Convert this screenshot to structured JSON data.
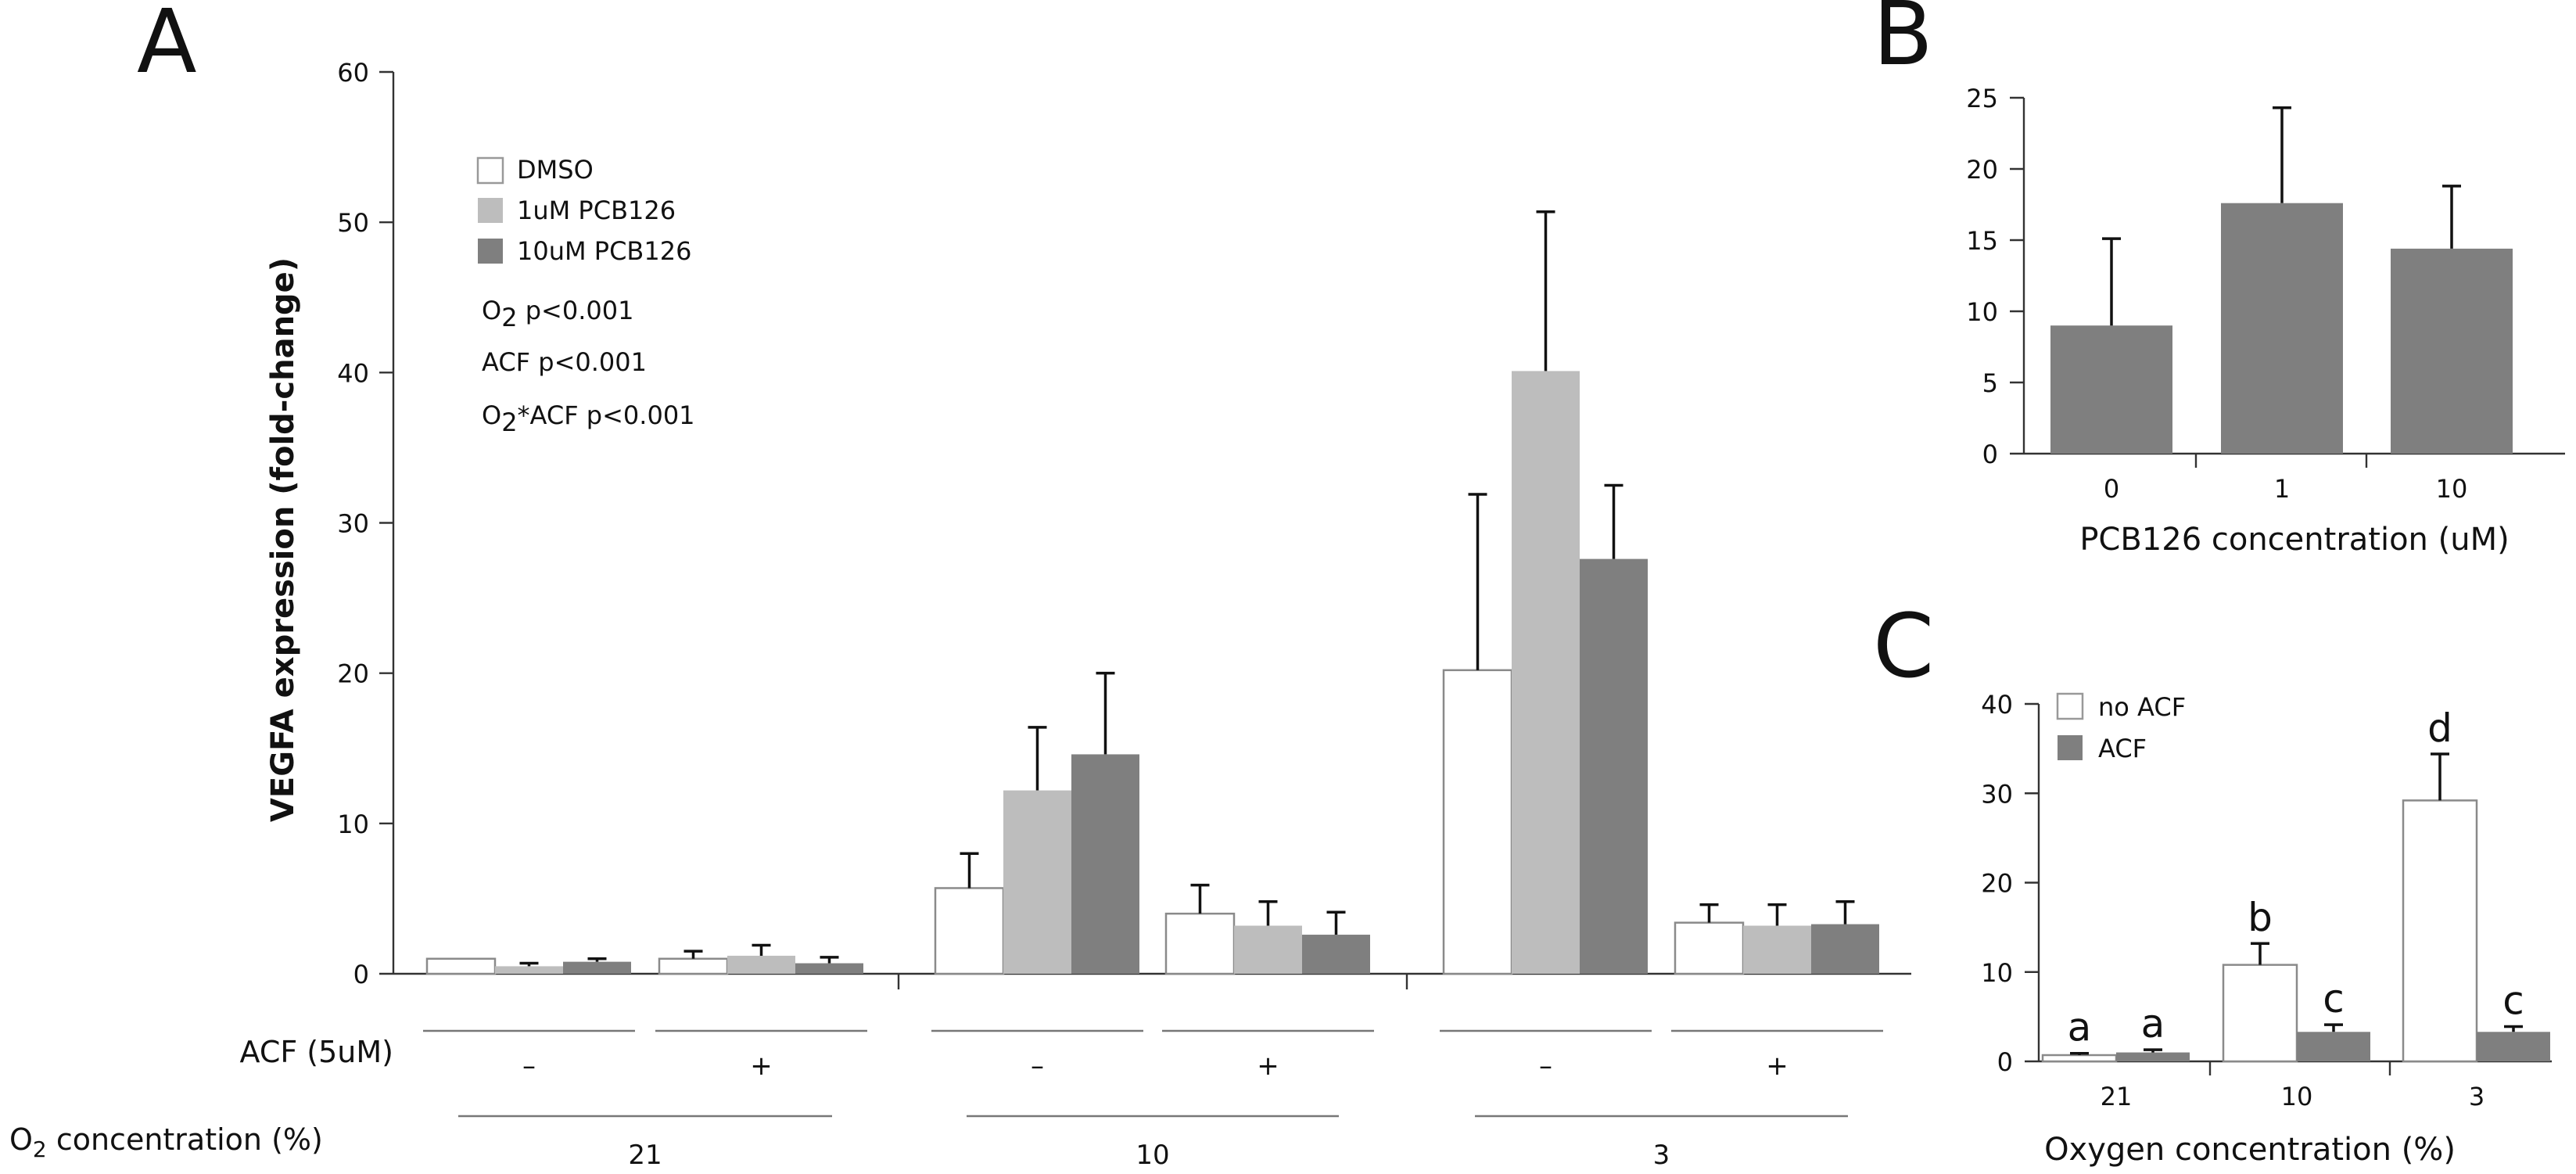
{
  "colors": {
    "white_bar": "#ffffff",
    "light_bar": "#bdbdbd",
    "dark_bar": "#7f7f7f",
    "outline": "#888888"
  },
  "chart_data": [
    {
      "panel": "A",
      "type": "bar",
      "ylabel": "VEGFA expression (fold-change)",
      "ylim": [
        0,
        60
      ],
      "yticks": [
        "0",
        "10",
        "20",
        "30",
        "40",
        "50",
        "60"
      ],
      "legend": {
        "position": "top-left",
        "entries": [
          {
            "label": "DMSO",
            "color": "#ffffff"
          },
          {
            "label": "1uM PCB126",
            "color": "#bdbdbd"
          },
          {
            "label": "10uM PCB126",
            "color": "#7f7f7f"
          }
        ]
      },
      "stats": [
        "O2 p<0.001",
        "ACF p<0.001",
        "O2*ACF p<0.001"
      ],
      "factor_labels": {
        "acf": "ACF (5uM)",
        "o2": "O2 concentration (%)"
      },
      "groups": [
        {
          "o2": "21",
          "acf": "–"
        },
        {
          "o2": "21",
          "acf": "+"
        },
        {
          "o2": "10",
          "acf": "–"
        },
        {
          "o2": "10",
          "acf": "+"
        },
        {
          "o2": "3",
          "acf": "–"
        },
        {
          "o2": "3",
          "acf": "+"
        }
      ],
      "series": [
        {
          "name": "DMSO",
          "values": [
            1.0,
            1.0,
            5.7,
            4.0,
            20.2,
            3.4
          ],
          "errors": [
            0.0,
            0.5,
            2.3,
            1.9,
            11.7,
            1.2
          ]
        },
        {
          "name": "1uM PCB126",
          "values": [
            0.5,
            1.2,
            12.2,
            3.2,
            40.1,
            3.2
          ],
          "errors": [
            0.2,
            0.7,
            4.2,
            1.6,
            10.6,
            1.4
          ]
        },
        {
          "name": "10uM PCB126",
          "values": [
            0.8,
            0.7,
            14.6,
            2.6,
            27.6,
            3.3
          ],
          "errors": [
            0.2,
            0.4,
            5.4,
            1.5,
            4.9,
            1.5
          ]
        }
      ]
    },
    {
      "panel": "B",
      "type": "bar",
      "xlabel": "PCB126 concentration (uM)",
      "categories": [
        "0",
        "1",
        "10"
      ],
      "values": [
        9.0,
        17.6,
        14.4
      ],
      "errors": [
        6.1,
        6.7,
        4.4
      ],
      "ylim": [
        0,
        25
      ],
      "yticks": [
        "0",
        "5",
        "10",
        "15",
        "20",
        "25"
      ]
    },
    {
      "panel": "C",
      "type": "bar",
      "xlabel": "Oxygen concentration (%)",
      "categories": [
        "21",
        "10",
        "3"
      ],
      "ylim": [
        0,
        40
      ],
      "yticks": [
        "0",
        "10",
        "20",
        "30",
        "40"
      ],
      "legend": {
        "position": "top-left",
        "entries": [
          {
            "label": "no ACF",
            "color": "#ffffff"
          },
          {
            "label": "ACF",
            "color": "#7f7f7f"
          }
        ]
      },
      "series": [
        {
          "name": "no ACF",
          "values": [
            0.7,
            10.8,
            29.2
          ],
          "errors": [
            0.2,
            2.4,
            5.2
          ],
          "letters": [
            "a",
            "b",
            "d"
          ]
        },
        {
          "name": "ACF",
          "values": [
            1.0,
            3.3,
            3.3
          ],
          "errors": [
            0.3,
            0.8,
            0.6
          ],
          "letters": [
            "a",
            "c",
            "c"
          ]
        }
      ]
    }
  ]
}
